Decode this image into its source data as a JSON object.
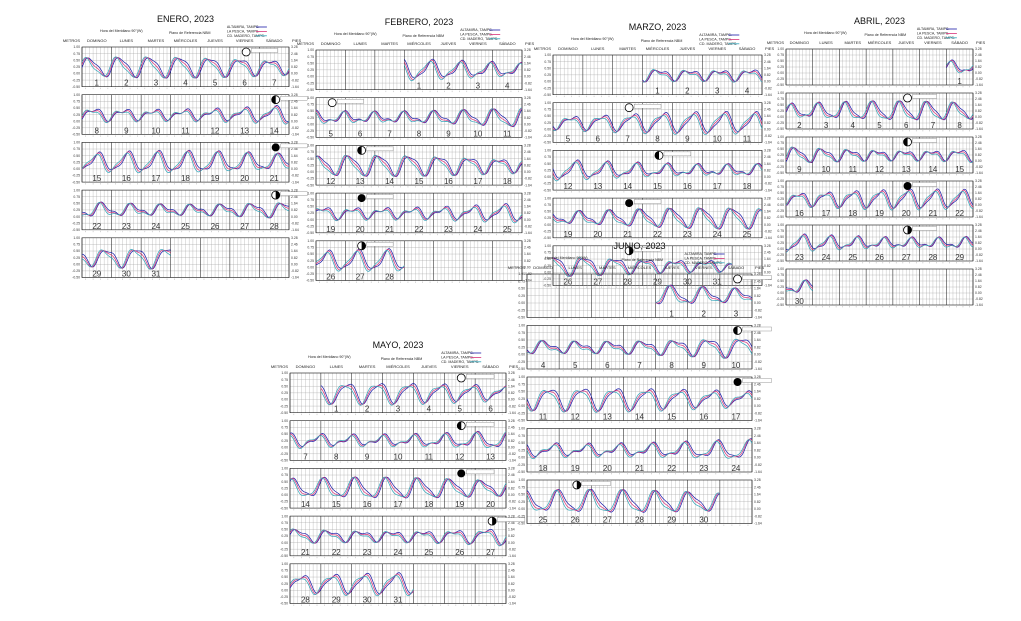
{
  "page": {
    "background": "#ffffff"
  },
  "colors": {
    "altamira": "#1a1aa8",
    "lapesca": "#d8347a",
    "madero": "#2fa3b8",
    "grid": "#9a9a9a",
    "moon": "#000000"
  },
  "common": {
    "tz": "Hora del Meridiano 90°(W)",
    "datum": "Plano de Referencia NBM",
    "metros": "METROS",
    "pies": "PIES",
    "weekdays": [
      "DOMINGO",
      "LUNES",
      "MARTES",
      "MIÉRCOLES",
      "JUEVES",
      "VIERNES",
      "SÁBADO"
    ],
    "left_ticks": [
      "1.00",
      "0.75",
      "0.50",
      "0.25",
      "0.00",
      "-0.25",
      "-0.50"
    ],
    "right_ticks": [
      "3.28",
      "2.46",
      "1.64",
      "0.82",
      "0.00",
      "-0.82",
      "-1.64"
    ]
  },
  "legend": [
    "ALTAMIRA, TAMPS.",
    "LA PESCA, TAMPS.",
    "CD. MADERO, TAMPS."
  ],
  "chart_data": [
    {
      "type": "line",
      "title": "ENERO, 2023",
      "start_weekday": 0,
      "days": 31,
      "ylim": [
        -0.5,
        1.0
      ],
      "ylabel": "METROS",
      "y2label": "PIES",
      "series": [
        {
          "name": "ALTAMIRA, TAMPS."
        },
        {
          "name": "LA PESCA, TAMPS."
        },
        {
          "name": "CD. MADERO, TAMPS."
        }
      ],
      "moon_phases": [
        {
          "day": 6,
          "phase": "full"
        },
        {
          "day": 14,
          "phase": "third_quarter"
        },
        {
          "day": 21,
          "phase": "new"
        },
        {
          "day": 28,
          "phase": "first_quarter"
        }
      ]
    },
    {
      "type": "line",
      "title": "FEBRERO, 2023",
      "start_weekday": 3,
      "days": 28,
      "ylim": [
        -0.5,
        1.0
      ],
      "ylabel": "METROS",
      "y2label": "PIES",
      "series": [
        {
          "name": "ALTAMIRA, TAMPS."
        },
        {
          "name": "LA PESCA, TAMPS."
        },
        {
          "name": "CD. MADERO, TAMPS."
        }
      ],
      "moon_phases": [
        {
          "day": 5,
          "phase": "full"
        },
        {
          "day": 13,
          "phase": "third_quarter"
        },
        {
          "day": 20,
          "phase": "new"
        },
        {
          "day": 27,
          "phase": "first_quarter"
        }
      ]
    },
    {
      "type": "line",
      "title": "MARZO, 2023",
      "start_weekday": 3,
      "days": 31,
      "ylim": [
        -0.5,
        1.0
      ],
      "ylabel": "METROS",
      "y2label": "PIES",
      "series": [
        {
          "name": "ALTAMIRA, TAMPS."
        },
        {
          "name": "LA PESCA, TAMPS."
        },
        {
          "name": "CD. MADERO, TAMPS."
        }
      ],
      "moon_phases": [
        {
          "day": 7,
          "phase": "full"
        },
        {
          "day": 15,
          "phase": "third_quarter"
        },
        {
          "day": 21,
          "phase": "new"
        },
        {
          "day": 28,
          "phase": "first_quarter"
        }
      ]
    },
    {
      "type": "line",
      "title": "ABRIL, 2023",
      "start_weekday": 6,
      "days": 30,
      "ylim": [
        -0.5,
        1.0
      ],
      "ylabel": "METROS",
      "y2label": "PIES",
      "series": [
        {
          "name": "ALTAMIRA, TAMPS."
        },
        {
          "name": "LA PESCA, TAMPS."
        },
        {
          "name": "CD. MADERO, TAMPS."
        }
      ],
      "moon_phases": [
        {
          "day": 6,
          "phase": "full"
        },
        {
          "day": 13,
          "phase": "third_quarter"
        },
        {
          "day": 20,
          "phase": "new"
        },
        {
          "day": 27,
          "phase": "first_quarter"
        }
      ]
    },
    {
      "type": "line",
      "title": "MAYO, 2023",
      "start_weekday": 1,
      "days": 31,
      "ylim": [
        -0.5,
        1.0
      ],
      "ylabel": "METROS",
      "y2label": "PIES",
      "series": [
        {
          "name": "ALTAMIRA, TAMPS."
        },
        {
          "name": "LA PESCA, TAMPS."
        },
        {
          "name": "CD. MADERO, TAMPS."
        }
      ],
      "moon_phases": [
        {
          "day": 5,
          "phase": "full"
        },
        {
          "day": 12,
          "phase": "third_quarter"
        },
        {
          "day": 19,
          "phase": "new"
        },
        {
          "day": 27,
          "phase": "first_quarter"
        }
      ]
    },
    {
      "type": "line",
      "title": "JUNIO, 2023",
      "start_weekday": 4,
      "days": 30,
      "ylim": [
        -0.5,
        1.0
      ],
      "ylabel": "METROS",
      "y2label": "PIES",
      "series": [
        {
          "name": "ALTAMIRA, TAMPS."
        },
        {
          "name": "LA PESCA, TAMPS."
        },
        {
          "name": "CD. MADERO, TAMPS."
        }
      ],
      "moon_phases": [
        {
          "day": 3,
          "phase": "full"
        },
        {
          "day": 10,
          "phase": "third_quarter"
        },
        {
          "day": 17,
          "phase": "new"
        },
        {
          "day": 26,
          "phase": "first_quarter"
        }
      ]
    }
  ]
}
